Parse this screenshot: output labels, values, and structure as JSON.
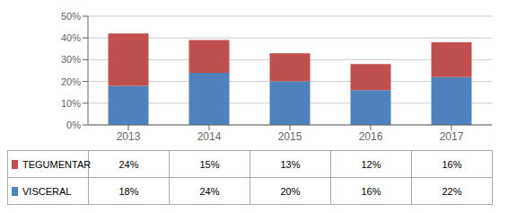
{
  "chart_data": {
    "type": "bar",
    "stacked": true,
    "grid": true,
    "categories": [
      "2013",
      "2014",
      "2015",
      "2016",
      "2017"
    ],
    "series": [
      {
        "name": "VISCERAL",
        "color": "#4f81bd",
        "values": [
          18,
          24,
          20,
          16,
          22
        ],
        "value_labels": [
          "18%",
          "24%",
          "20%",
          "16%",
          "22%"
        ]
      },
      {
        "name": "TEGUMENTAR",
        "color": "#c0504d",
        "values": [
          24,
          15,
          13,
          12,
          16
        ],
        "value_labels": [
          "24%",
          "15%",
          "13%",
          "12%",
          "16%"
        ]
      }
    ],
    "ylim": [
      0,
      50
    ],
    "yticks": [
      {
        "value": 0,
        "label": "0%"
      },
      {
        "value": 10,
        "label": "10%"
      },
      {
        "value": 20,
        "label": "20%"
      },
      {
        "value": 30,
        "label": "30%"
      },
      {
        "value": 40,
        "label": "40%"
      },
      {
        "value": 50,
        "label": "50%"
      }
    ]
  }
}
